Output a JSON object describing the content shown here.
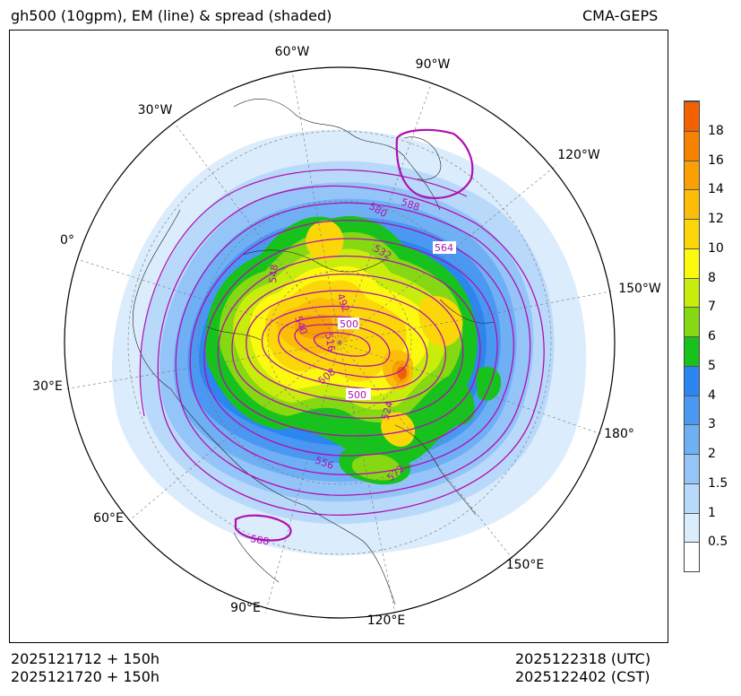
{
  "header": {
    "title": "gh500 (10gpm), EM (line) & spread (shaded)",
    "model": "CMA-GEPS"
  },
  "footer": {
    "init_utc": "2025121712 + 150h",
    "init_cst": "2025121720 + 150h",
    "valid_utc": "2025122318 (UTC)",
    "valid_cst": "2025122402 (CST)"
  },
  "map": {
    "projection": "north-polar-stereographic",
    "longitude_labels": [
      "60°W",
      "90°W",
      "30°W",
      "120°W",
      "0°",
      "150°W",
      "30°E",
      "180°",
      "60°E",
      "150°E",
      "90°E",
      "120°E"
    ],
    "contour_labels": [
      "580",
      "588",
      "532",
      "564",
      "548",
      "492",
      "500",
      "540",
      "516",
      "508",
      "500",
      "524",
      "556",
      "572",
      "588"
    ],
    "colors": {
      "contour": "#b010b0",
      "coast": "#222222",
      "grid": "#777777"
    }
  },
  "colorbar": {
    "labels": [
      "18",
      "16",
      "14",
      "12",
      "10",
      "8",
      "7",
      "6",
      "5",
      "4",
      "3",
      "2",
      "1.5",
      "1",
      "0.5"
    ],
    "colors": [
      "#ffffff",
      "#dbecfc",
      "#b9d9fb",
      "#95c4f8",
      "#6fb0f5",
      "#4a98f2",
      "#2b86f0",
      "#17c21c",
      "#86d812",
      "#c8ec0c",
      "#fbfa0e",
      "#fbd70a",
      "#fbbd07",
      "#f9a004",
      "#f78102",
      "#f46101"
    ]
  }
}
